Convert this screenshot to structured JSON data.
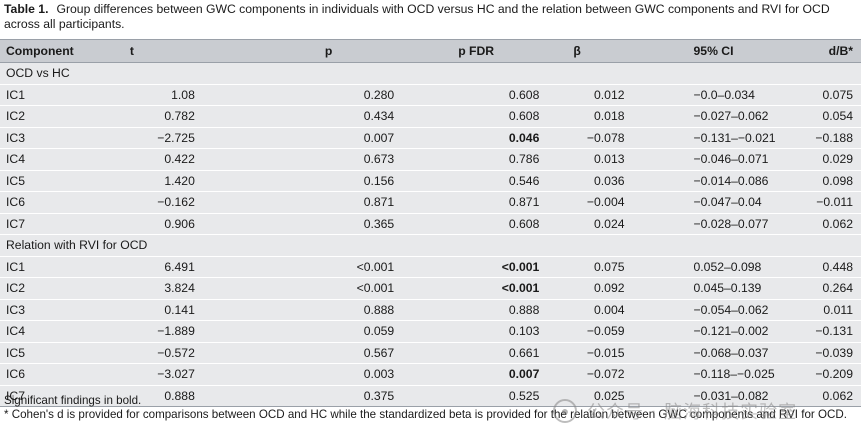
{
  "caption": {
    "label": "Table 1.",
    "text": "Group differences between GWC components in individuals with OCD versus HC and the relation between GWC components and RVI for OCD across all participants."
  },
  "table": {
    "headers": [
      "Component",
      "t",
      "p",
      "p FDR",
      "β",
      "95% CI",
      "d/B*"
    ],
    "sections": [
      {
        "title": "OCD vs HC",
        "rows": [
          {
            "cells": [
              "IC1",
              "1.08",
              "0.280",
              "0.608",
              "0.012",
              "−0.0–0.034",
              "0.075"
            ],
            "bold_fdr": false
          },
          {
            "cells": [
              "IC2",
              "0.782",
              "0.434",
              "0.608",
              "0.018",
              "−0.027–0.062",
              "0.054"
            ],
            "bold_fdr": false
          },
          {
            "cells": [
              "IC3",
              "−2.725",
              "0.007",
              "0.046",
              "−0.078",
              "−0.131–−0.021",
              "−0.188"
            ],
            "bold_fdr": true
          },
          {
            "cells": [
              "IC4",
              "0.422",
              "0.673",
              "0.786",
              "0.013",
              "−0.046–0.071",
              "0.029"
            ],
            "bold_fdr": false
          },
          {
            "cells": [
              "IC5",
              "1.420",
              "0.156",
              "0.546",
              "0.036",
              "−0.014–0.086",
              "0.098"
            ],
            "bold_fdr": false
          },
          {
            "cells": [
              "IC6",
              "−0.162",
              "0.871",
              "0.871",
              "−0.004",
              "−0.047–0.04",
              "−0.011"
            ],
            "bold_fdr": false
          },
          {
            "cells": [
              "IC7",
              "0.906",
              "0.365",
              "0.608",
              "0.024",
              "−0.028–0.077",
              "0.062"
            ],
            "bold_fdr": false
          }
        ]
      },
      {
        "title": "Relation with RVI for OCD",
        "rows": [
          {
            "cells": [
              "IC1",
              "6.491",
              "<0.001",
              "<0.001",
              "0.075",
              "0.052–0.098",
              "0.448"
            ],
            "bold_fdr": true
          },
          {
            "cells": [
              "IC2",
              "3.824",
              "<0.001",
              "<0.001",
              "0.092",
              "0.045–0.139",
              "0.264"
            ],
            "bold_fdr": true
          },
          {
            "cells": [
              "IC3",
              "0.141",
              "0.888",
              "0.888",
              "0.004",
              "−0.054–0.062",
              "0.011"
            ],
            "bold_fdr": false
          },
          {
            "cells": [
              "IC4",
              "−1.889",
              "0.059",
              "0.103",
              "−0.059",
              "−0.121–0.002",
              "−0.131"
            ],
            "bold_fdr": false
          },
          {
            "cells": [
              "IC5",
              "−0.572",
              "0.567",
              "0.661",
              "−0.015",
              "−0.068–0.037",
              "−0.039"
            ],
            "bold_fdr": false
          },
          {
            "cells": [
              "IC6",
              "−3.027",
              "0.003",
              "0.007",
              "−0.072",
              "−0.118–−0.025",
              "−0.209"
            ],
            "bold_fdr": true
          },
          {
            "cells": [
              "IC7",
              "0.888",
              "0.375",
              "0.525",
              "0.025",
              "−0.031–0.082",
              "0.062"
            ],
            "bold_fdr": false
          }
        ]
      }
    ]
  },
  "footer": {
    "note1": "Significant findings in bold.",
    "note2": "* Cohen's d is provided for comparisons between OCD and HC while the standardized beta is provided for the relation between GWC components and RVI for OCD."
  },
  "watermark": {
    "text": "公众号 · 脑海科技实验室",
    "icon": "wechat-icon"
  }
}
